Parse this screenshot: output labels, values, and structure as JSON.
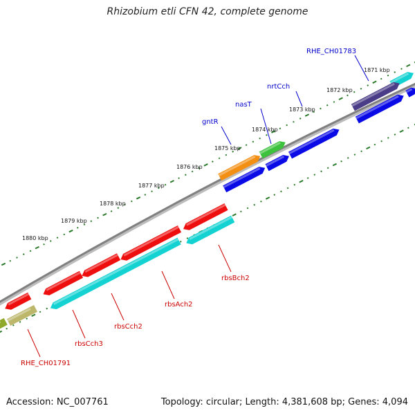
{
  "title": "Rhizobium etli CFN 42, complete genome",
  "footer": {
    "accession": "Accession: NC_007761",
    "summary": "Topology: circular; Length: 4,381,608 bp; Genes: 4,094"
  },
  "ruler_labels": [
    "1871 kbp",
    "1872 kbp",
    "1873 kbp",
    "1874 kbp",
    "1875 kbp",
    "1876 kbp",
    "1877 kbp",
    "1878 kbp",
    "1879 kbp",
    "1880 kbp"
  ],
  "forward_gene_labels": [
    "RHE_CH01783",
    "nrtCch",
    "nasT",
    "gntR"
  ],
  "reverse_gene_labels": [
    "rbsBch2",
    "rbsAch2",
    "rbsCch2",
    "rbsCch3",
    "RHE_CH01791"
  ],
  "colors": {
    "backbone": "#808080",
    "forward_label": "#0000cc",
    "reverse_label": "#cc0000",
    "tick_dots": "#2a7a2a",
    "blue": "#0a0ae6",
    "dark_purple": "#4a3c86",
    "cyan": "#14d2d2",
    "green": "#3cc23c",
    "orange": "#f39014",
    "red": "#ee0e0e",
    "khaki": "#bdb76b",
    "olive": "#8faa2a"
  }
}
